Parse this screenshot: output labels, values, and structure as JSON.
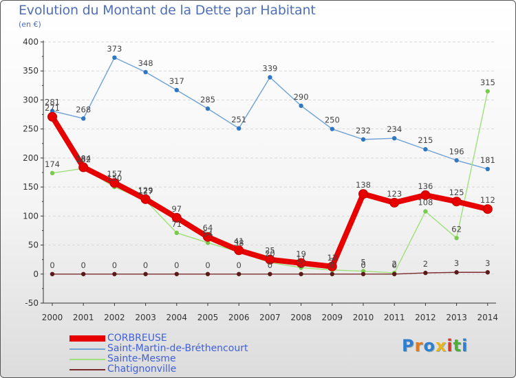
{
  "title": "Evolution du Montant de la Dette par Habitant",
  "unit": "(en €)",
  "logo": "Proxiti",
  "colors": {
    "title": "#4e6fb8",
    "axis": "#333333",
    "grid": "#d8d8d8",
    "legend_text": "#4060d8"
  },
  "chart_data": {
    "type": "line",
    "title": "Evolution du Montant de la Dette par Habitant",
    "ylabel": "(en €)",
    "xlabel": "",
    "x": [
      "2000",
      "2001",
      "2002",
      "2003",
      "2004",
      "2005",
      "2006",
      "2007",
      "2008",
      "2009",
      "2010",
      "2011",
      "2012",
      "2013",
      "2014"
    ],
    "ylim": [
      -50,
      400
    ],
    "yticks": [
      "-50",
      "0",
      "50",
      "100",
      "150",
      "200",
      "250",
      "300",
      "350",
      "400"
    ],
    "grid": "horizontal dashed",
    "legend_position": "bottom-left",
    "series": [
      {
        "name": "CORBREUSE",
        "color": "#e60000",
        "marker": "#e60000",
        "style": "thick",
        "values": [
          271,
          184,
          157,
          129,
          97,
          64,
          41,
          25,
          19,
          13,
          138,
          123,
          136,
          125,
          112
        ],
        "labels": [
          "271",
          "184",
          "157",
          "129",
          "97",
          "64",
          "41",
          "25",
          "19",
          "13",
          "138",
          "123",
          "136",
          "125",
          "112"
        ]
      },
      {
        "name": "Saint-Martin-de-Bréthencourt",
        "color": "#6fa1d6",
        "marker": "#2f77c2",
        "style": "thin",
        "values": [
          281,
          268,
          373,
          348,
          317,
          285,
          251,
          339,
          290,
          250,
          232,
          234,
          215,
          196,
          181
        ],
        "labels": [
          "281",
          "268",
          "373",
          "348",
          "317",
          "285",
          "251",
          "339",
          "290",
          "250",
          "232",
          "234",
          "215",
          "196",
          "181"
        ]
      },
      {
        "name": "Sainte-Mesme",
        "color": "#9ee07a",
        "marker": "#7bc94e",
        "style": "thin",
        "values": [
          174,
          182,
          150,
          127,
          71,
          54,
          38,
          20,
          11,
          7,
          5,
          2,
          108,
          62,
          315
        ],
        "labels": [
          "174",
          "182",
          "150",
          "127",
          "71",
          "54",
          "38",
          "20",
          "11",
          "7",
          "5",
          "2",
          "108",
          "62",
          "315"
        ]
      },
      {
        "name": "Chatignonville",
        "color": "#7a2a2a",
        "marker": "#5a1a1a",
        "style": "thin",
        "values": [
          0,
          0,
          0,
          0,
          0,
          0,
          0,
          0,
          0,
          0,
          0,
          0,
          2,
          3,
          3
        ],
        "labels": [
          "0",
          "0",
          "0",
          "0",
          "0",
          "0",
          "0",
          "0",
          "0",
          "0",
          "0",
          "0",
          "2",
          "3",
          "3"
        ]
      }
    ]
  }
}
